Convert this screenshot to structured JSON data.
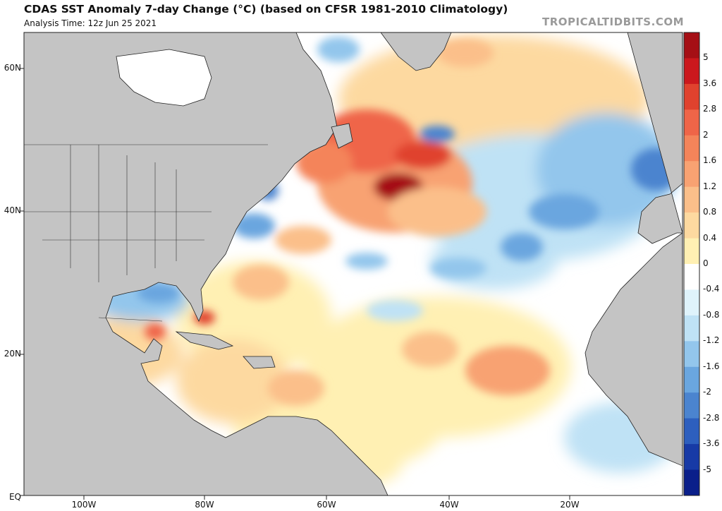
{
  "header": {
    "title": "CDAS SST Anomaly 7-day Change (°C) (based on CFSR 1981-2010 Climatology)",
    "analysis_time": "Analysis Time: 12z Jun 25 2021",
    "brand": "TROPICALTIDBITS.COM"
  },
  "axes": {
    "lat_labels": [
      "60N",
      "40N",
      "20N",
      "EQ"
    ],
    "lon_labels": [
      "100W",
      "80W",
      "60W",
      "40W",
      "20W"
    ]
  },
  "colorbar": {
    "labels": [
      "5",
      "3.6",
      "2.8",
      "2",
      "1.6",
      "1.2",
      "0.8",
      "0.4",
      "0",
      "-0.4",
      "-0.8",
      "-1.2",
      "-1.6",
      "-2",
      "-2.8",
      "-3.6",
      "-5"
    ],
    "colors": [
      "#a50f15",
      "#cb181d",
      "#e0422e",
      "#ef6548",
      "#f4845a",
      "#f8a272",
      "#fbbf8a",
      "#fdd9a0",
      "#fff0b3",
      "#ffffff",
      "#dff3fb",
      "#bfe2f5",
      "#93c6ec",
      "#6aa6df",
      "#4b84cf",
      "#2d5fbe",
      "#173aa6",
      "#0a1f8a"
    ]
  },
  "colors": {
    "land": "#c4c4c4",
    "border": "#222222"
  }
}
